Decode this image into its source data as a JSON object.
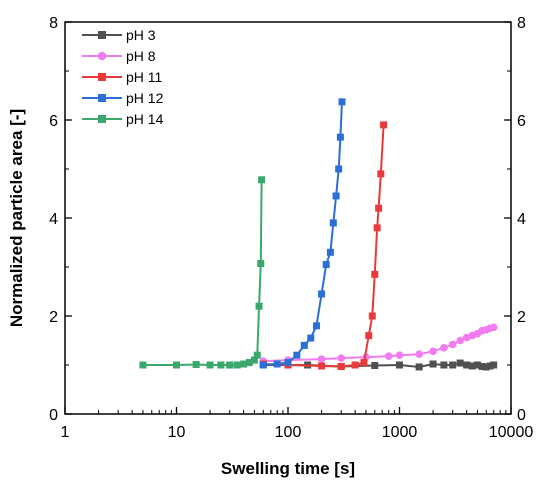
{
  "chart_data": {
    "type": "line",
    "title": "",
    "xlabel": "Swelling time [s]",
    "ylabel": "Normalized particle area [-]",
    "xscale": "log",
    "xlim": [
      1,
      10000
    ],
    "ylim": [
      0,
      8
    ],
    "x_ticks": [
      1,
      10,
      100,
      1000,
      10000
    ],
    "x_tick_labels": [
      "1",
      "10",
      "100",
      "1000",
      "10000"
    ],
    "y_ticks": [
      0,
      2,
      4,
      6,
      8
    ],
    "y_tick_labels": [
      "0",
      "2",
      "4",
      "6",
      "8"
    ],
    "right_axis_mirrored": true,
    "grid": false,
    "legend_position": "top-left",
    "series": [
      {
        "name": "pH 3",
        "color": "#505050",
        "marker": "square",
        "points": [
          [
            60,
            1.0
          ],
          [
            150,
            1.0
          ],
          [
            300,
            0.97
          ],
          [
            600,
            0.99
          ],
          [
            1000,
            1.0
          ],
          [
            1500,
            0.96
          ],
          [
            2000,
            1.02
          ],
          [
            2500,
            1.0
          ],
          [
            3000,
            1.0
          ],
          [
            3500,
            1.04
          ],
          [
            4000,
            1.0
          ],
          [
            4500,
            0.98
          ],
          [
            5000,
            1.0
          ],
          [
            5500,
            0.97
          ],
          [
            6000,
            0.96
          ],
          [
            6500,
            0.98
          ],
          [
            7000,
            1.0
          ]
        ]
      },
      {
        "name": "pH 8",
        "color": "#f07cf0",
        "marker": "circle",
        "points": [
          [
            60,
            1.08
          ],
          [
            100,
            1.1
          ],
          [
            200,
            1.12
          ],
          [
            300,
            1.14
          ],
          [
            500,
            1.16
          ],
          [
            800,
            1.18
          ],
          [
            1000,
            1.2
          ],
          [
            1500,
            1.22
          ],
          [
            2000,
            1.28
          ],
          [
            2500,
            1.35
          ],
          [
            3000,
            1.42
          ],
          [
            3500,
            1.5
          ],
          [
            4000,
            1.56
          ],
          [
            4500,
            1.6
          ],
          [
            5000,
            1.64
          ],
          [
            5500,
            1.7
          ],
          [
            6000,
            1.72
          ],
          [
            6500,
            1.75
          ],
          [
            7000,
            1.77
          ]
        ]
      },
      {
        "name": "pH 11",
        "color": "#e83a3a",
        "marker": "square",
        "points": [
          [
            60,
            1.02
          ],
          [
            100,
            1.0
          ],
          [
            200,
            0.98
          ],
          [
            300,
            0.97
          ],
          [
            400,
            1.0
          ],
          [
            480,
            1.05
          ],
          [
            530,
            1.6
          ],
          [
            570,
            2.0
          ],
          [
            600,
            2.85
          ],
          [
            630,
            3.8
          ],
          [
            650,
            4.2
          ],
          [
            680,
            4.9
          ],
          [
            720,
            5.9
          ]
        ]
      },
      {
        "name": "pH 12",
        "color": "#2a6fd4",
        "marker": "square",
        "points": [
          [
            60,
            1.0
          ],
          [
            80,
            1.02
          ],
          [
            100,
            1.05
          ],
          [
            120,
            1.2
          ],
          [
            140,
            1.4
          ],
          [
            160,
            1.55
          ],
          [
            180,
            1.8
          ],
          [
            200,
            2.45
          ],
          [
            220,
            3.05
          ],
          [
            240,
            3.3
          ],
          [
            255,
            3.9
          ],
          [
            270,
            4.45
          ],
          [
            285,
            5.0
          ],
          [
            295,
            5.65
          ],
          [
            305,
            6.37
          ]
        ]
      },
      {
        "name": "pH 14",
        "color": "#3aa86a",
        "marker": "square",
        "points": [
          [
            5,
            1.0
          ],
          [
            10,
            1.0
          ],
          [
            15,
            1.01
          ],
          [
            20,
            1.0
          ],
          [
            25,
            1.0
          ],
          [
            30,
            1.0
          ],
          [
            35,
            1.0
          ],
          [
            40,
            1.02
          ],
          [
            45,
            1.05
          ],
          [
            50,
            1.1
          ],
          [
            53,
            1.2
          ],
          [
            55,
            2.2
          ],
          [
            57,
            3.07
          ],
          [
            58,
            4.78
          ]
        ]
      }
    ]
  }
}
